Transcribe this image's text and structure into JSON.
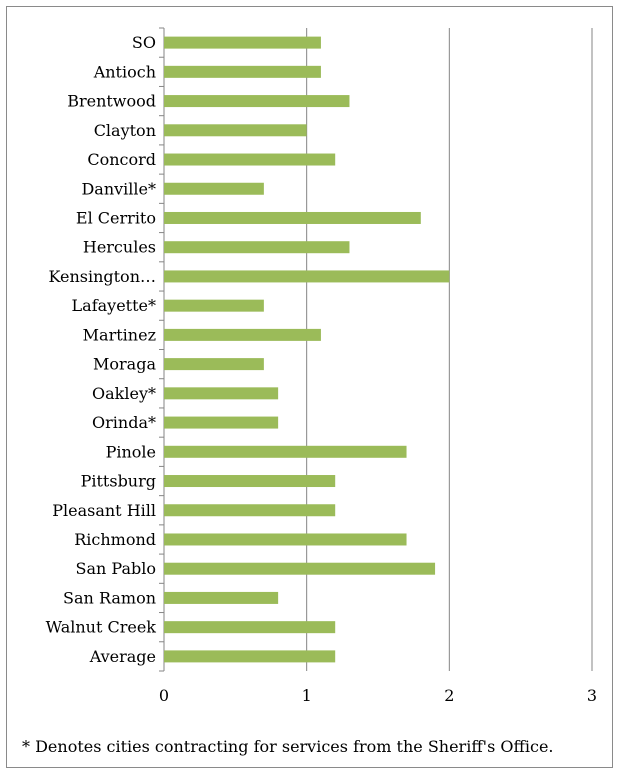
{
  "chart_data": {
    "type": "bar",
    "orientation": "horizontal",
    "categories": [
      "SO",
      "Antioch",
      "Brentwood",
      "Clayton",
      "Concord",
      "Danville*",
      "El Cerrito",
      "Hercules",
      "Kensington…",
      "Lafayette*",
      "Martinez",
      "Moraga",
      "Oakley*",
      "Orinda*",
      "Pinole",
      "Pittsburg",
      "Pleasant Hill",
      "Richmond",
      "San Pablo",
      "San Ramon",
      "Walnut Creek",
      "Average"
    ],
    "values": [
      1.1,
      1.1,
      1.3,
      1.0,
      1.2,
      0.7,
      1.8,
      1.3,
      2.0,
      0.7,
      1.1,
      0.7,
      0.8,
      0.8,
      1.7,
      1.2,
      1.2,
      1.7,
      1.9,
      0.8,
      1.2,
      1.2
    ],
    "xlim": [
      0,
      3
    ],
    "xticks": [
      "0",
      "1",
      "2",
      "3"
    ],
    "grid": true,
    "legend": "none",
    "bar_color": "#9bbb59"
  },
  "footnote": "* Denotes cities contracting for services from the Sheriff's Office."
}
